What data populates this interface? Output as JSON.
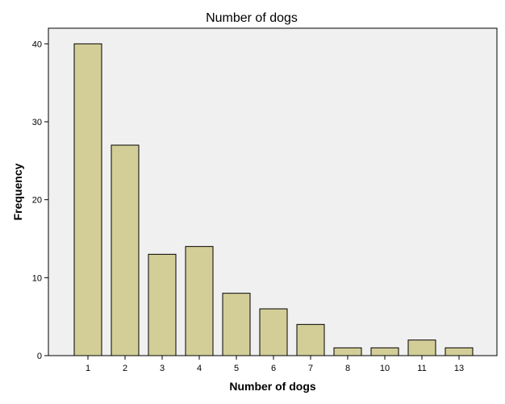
{
  "chart_data": {
    "type": "bar",
    "title": "Number of dogs",
    "xlabel": "Number of dogs",
    "ylabel": "Frequency",
    "categories": [
      "1",
      "2",
      "3",
      "4",
      "5",
      "6",
      "7",
      "8",
      "10",
      "11",
      "13"
    ],
    "values": [
      40,
      27,
      13,
      14,
      8,
      6,
      4,
      1,
      1,
      2,
      1
    ],
    "ylim": [
      0,
      42
    ],
    "yticks": [
      "0",
      "10",
      "20",
      "30",
      "40"
    ],
    "grid": false,
    "colors": {
      "bar_fill": "#d3ce97",
      "bar_stroke": "#000000",
      "plot_background": "#f0f0f0"
    }
  }
}
